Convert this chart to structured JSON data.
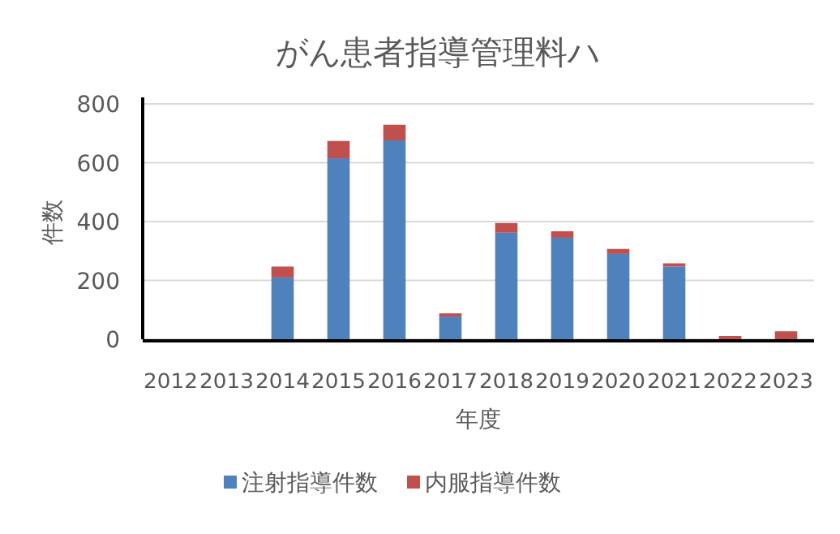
{
  "chart_data": {
    "type": "bar",
    "title": "がん患者指導管理料ハ",
    "xlabel": "年度",
    "ylabel": "件数",
    "categories": [
      "2012",
      "2013",
      "2014",
      "2015",
      "2016",
      "2017",
      "2018",
      "2019",
      "2020",
      "2021",
      "2022",
      "2023"
    ],
    "series": [
      {
        "name": "注射指導件数",
        "color": "#4f81bd",
        "values": [
          0,
          0,
          210,
          615,
          676,
          77,
          362,
          345,
          290,
          247,
          0,
          0
        ]
      },
      {
        "name": "内服指導件数",
        "color": "#c0504d",
        "values": [
          0,
          0,
          37,
          59,
          53,
          11,
          33,
          22,
          17,
          11,
          11,
          27
        ]
      }
    ],
    "stacked": true,
    "ylim": [
      0,
      800
    ],
    "yticks": [
      0,
      200,
      400,
      600,
      800
    ],
    "grid": "y",
    "legend": "bottom"
  }
}
